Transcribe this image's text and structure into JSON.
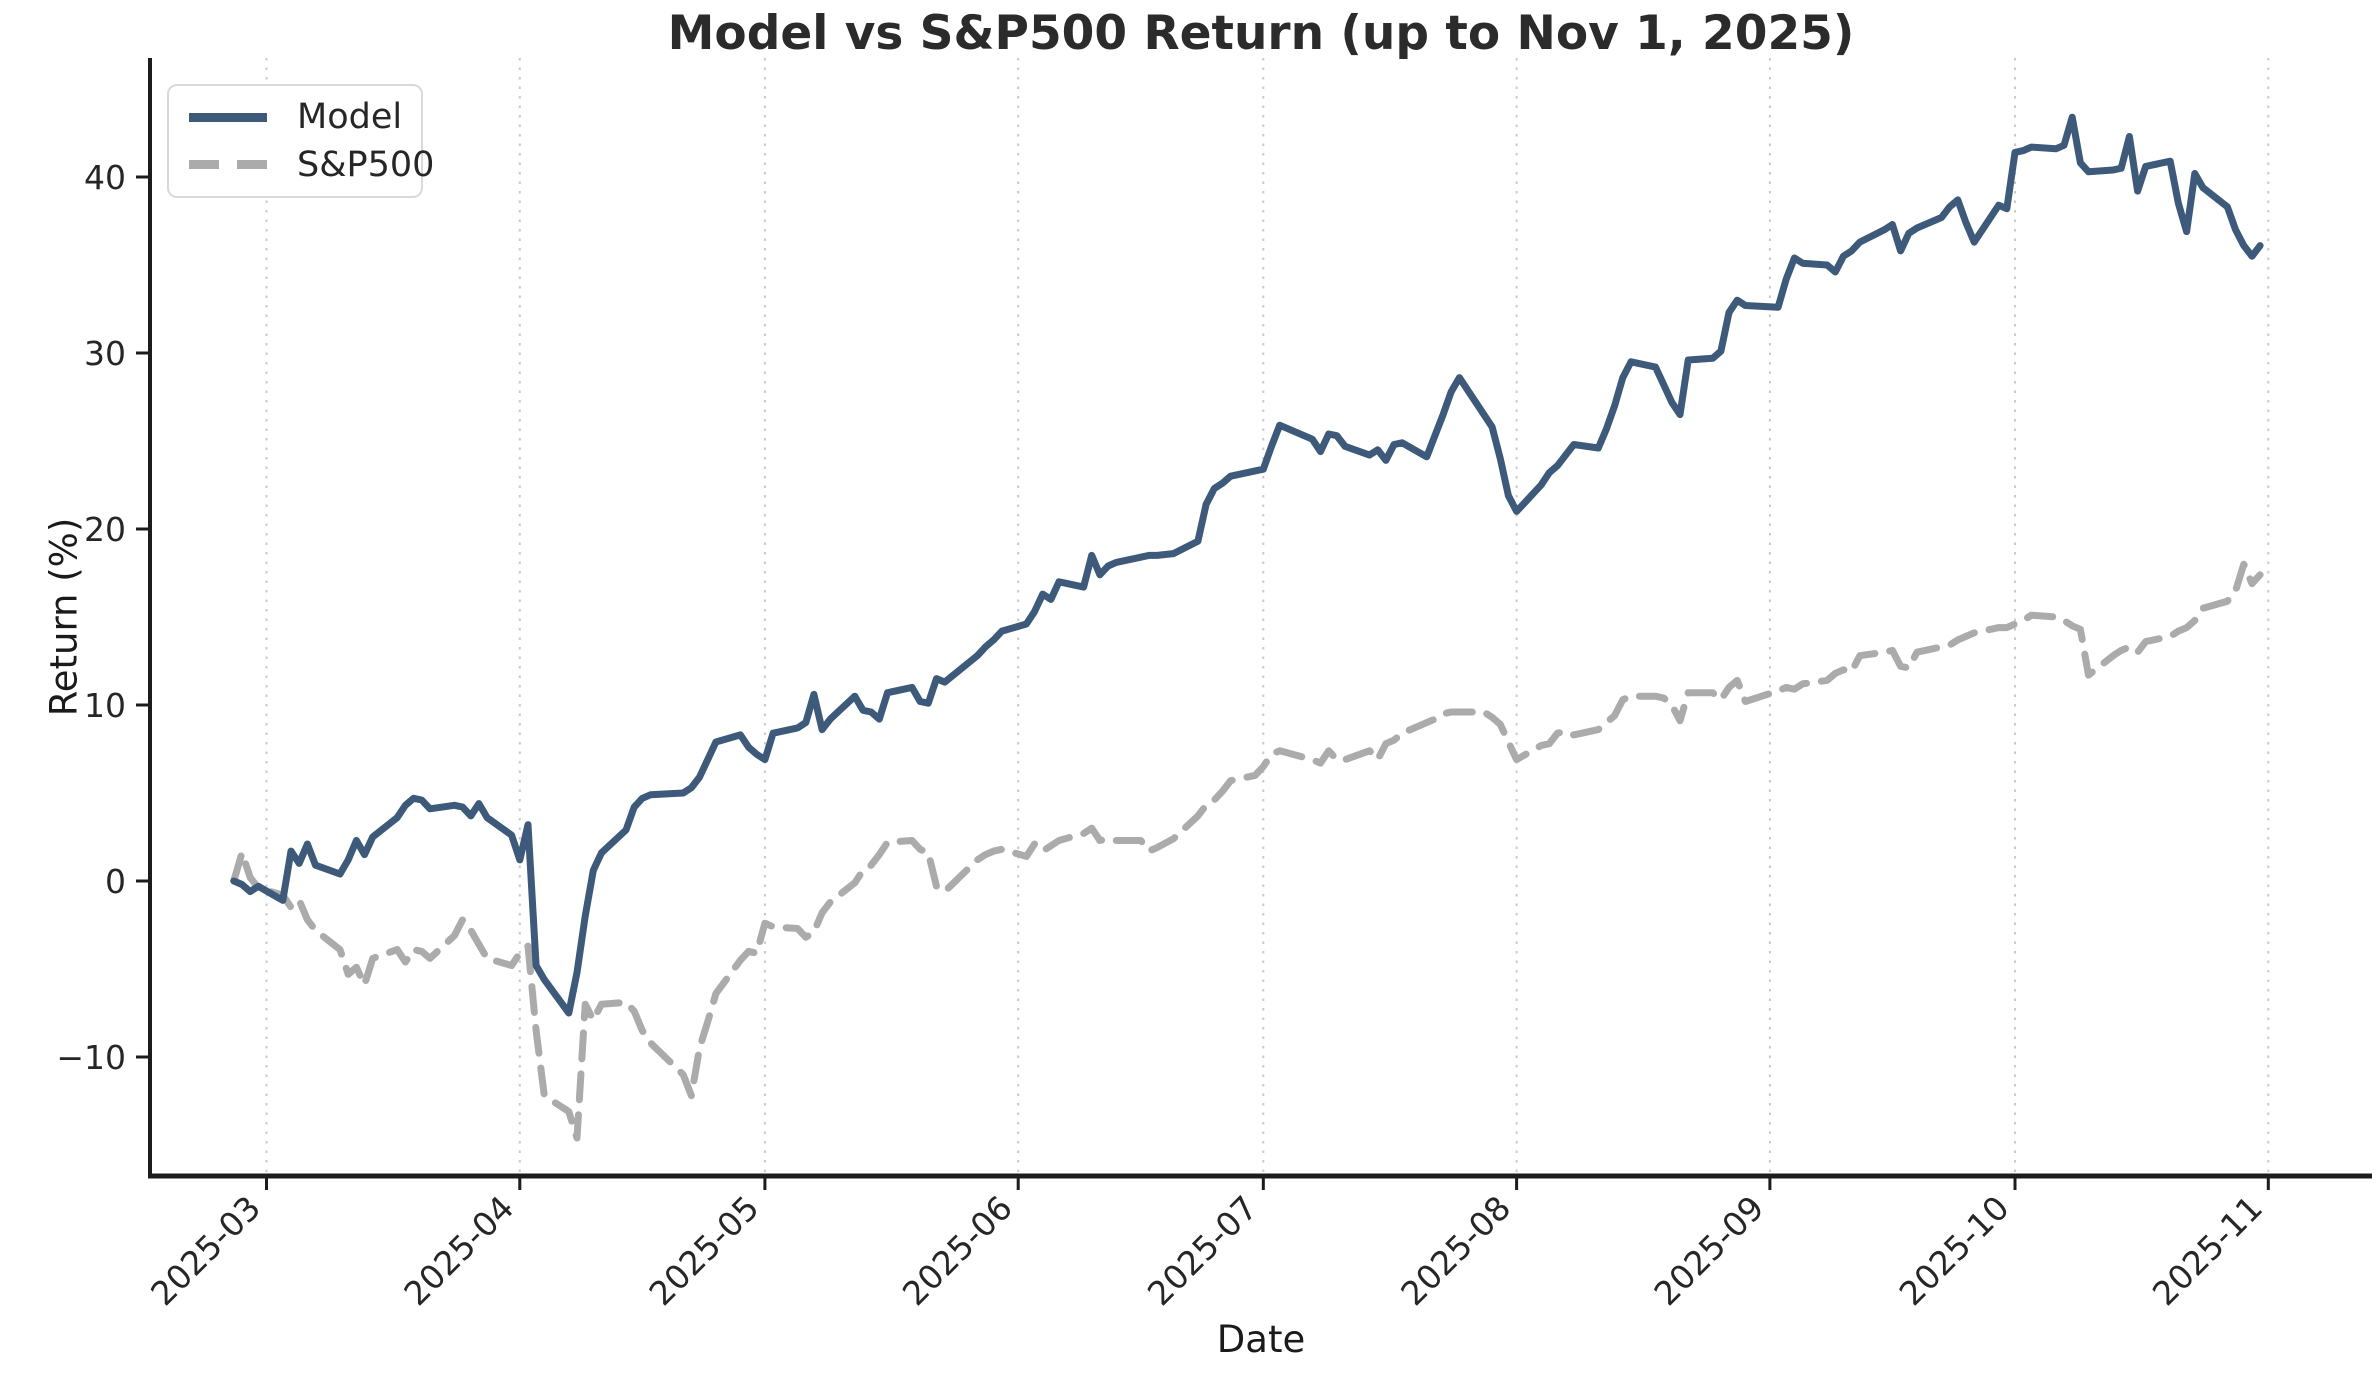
{
  "chart_data": {
    "type": "line",
    "title": "Model vs S&P500 Return (up to Nov 1, 2025)",
    "xlabel": "Date",
    "ylabel": "Return (%)",
    "legend_position": "upper left",
    "grid": "vertical dotted gridlines at month boundaries",
    "ylim": [
      -16.7,
      46.6
    ],
    "xlim": [
      "2025-02-12",
      "2025-11-13"
    ],
    "x": [
      "2025-02-25",
      "2025-02-26",
      "2025-02-27",
      "2025-02-28",
      "2025-03-03",
      "2025-03-04",
      "2025-03-05",
      "2025-03-06",
      "2025-03-07",
      "2025-03-10",
      "2025-03-11",
      "2025-03-12",
      "2025-03-13",
      "2025-03-14",
      "2025-03-17",
      "2025-03-18",
      "2025-03-19",
      "2025-03-20",
      "2025-03-21",
      "2025-03-24",
      "2025-03-25",
      "2025-03-26",
      "2025-03-27",
      "2025-03-28",
      "2025-03-31",
      "2025-04-01",
      "2025-04-02",
      "2025-04-03",
      "2025-04-04",
      "2025-04-07",
      "2025-04-08",
      "2025-04-09",
      "2025-04-10",
      "2025-04-11",
      "2025-04-14",
      "2025-04-15",
      "2025-04-16",
      "2025-04-17",
      "2025-04-21",
      "2025-04-22",
      "2025-04-23",
      "2025-04-24",
      "2025-04-25",
      "2025-04-28",
      "2025-04-29",
      "2025-04-30",
      "2025-05-01",
      "2025-05-02",
      "2025-05-05",
      "2025-05-06",
      "2025-05-07",
      "2025-05-08",
      "2025-05-09",
      "2025-05-12",
      "2025-05-13",
      "2025-05-14",
      "2025-05-15",
      "2025-05-16",
      "2025-05-19",
      "2025-05-20",
      "2025-05-21",
      "2025-05-22",
      "2025-05-23",
      "2025-05-27",
      "2025-05-28",
      "2025-05-29",
      "2025-05-30",
      "2025-06-02",
      "2025-06-03",
      "2025-06-04",
      "2025-06-05",
      "2025-06-06",
      "2025-06-09",
      "2025-06-10",
      "2025-06-11",
      "2025-06-12",
      "2025-06-13",
      "2025-06-16",
      "2025-06-17",
      "2025-06-18",
      "2025-06-20",
      "2025-06-23",
      "2025-06-24",
      "2025-06-25",
      "2025-06-26",
      "2025-06-27",
      "2025-06-30",
      "2025-07-01",
      "2025-07-02",
      "2025-07-03",
      "2025-07-07",
      "2025-07-08",
      "2025-07-09",
      "2025-07-10",
      "2025-07-11",
      "2025-07-14",
      "2025-07-15",
      "2025-07-16",
      "2025-07-17",
      "2025-07-18",
      "2025-07-21",
      "2025-07-22",
      "2025-07-23",
      "2025-07-24",
      "2025-07-25",
      "2025-07-28",
      "2025-07-29",
      "2025-07-30",
      "2025-07-31",
      "2025-08-01",
      "2025-08-04",
      "2025-08-05",
      "2025-08-06",
      "2025-08-07",
      "2025-08-08",
      "2025-08-11",
      "2025-08-12",
      "2025-08-13",
      "2025-08-14",
      "2025-08-15",
      "2025-08-18",
      "2025-08-19",
      "2025-08-20",
      "2025-08-21",
      "2025-08-22",
      "2025-08-25",
      "2025-08-26",
      "2025-08-27",
      "2025-08-28",
      "2025-08-29",
      "2025-09-02",
      "2025-09-03",
      "2025-09-04",
      "2025-09-05",
      "2025-09-08",
      "2025-09-09",
      "2025-09-10",
      "2025-09-11",
      "2025-09-12",
      "2025-09-15",
      "2025-09-16",
      "2025-09-17",
      "2025-09-18",
      "2025-09-19",
      "2025-09-22",
      "2025-09-23",
      "2025-09-24",
      "2025-09-25",
      "2025-09-26",
      "2025-09-29",
      "2025-09-30",
      "2025-10-01",
      "2025-10-02",
      "2025-10-03",
      "2025-10-06",
      "2025-10-07",
      "2025-10-08",
      "2025-10-09",
      "2025-10-10",
      "2025-10-13",
      "2025-10-14",
      "2025-10-15",
      "2025-10-16",
      "2025-10-17",
      "2025-10-20",
      "2025-10-21",
      "2025-10-22",
      "2025-10-23",
      "2025-10-24",
      "2025-10-27",
      "2025-10-28",
      "2025-10-29",
      "2025-10-30",
      "2025-10-31"
    ],
    "series": [
      {
        "name": "Model",
        "color": "#3d5a7a",
        "style": "solid",
        "values": [
          0.0,
          -0.2,
          -0.6,
          -0.3,
          -1.1,
          1.7,
          1.0,
          2.1,
          0.9,
          0.4,
          1.2,
          2.3,
          1.5,
          2.5,
          3.6,
          4.3,
          4.7,
          4.6,
          4.1,
          4.3,
          4.2,
          3.7,
          4.4,
          3.6,
          2.6,
          1.2,
          3.2,
          -4.8,
          -5.6,
          -7.5,
          -5.2,
          -2.0,
          0.6,
          1.6,
          2.9,
          4.2,
          4.7,
          4.9,
          5.0,
          5.3,
          5.9,
          6.9,
          7.9,
          8.3,
          7.6,
          7.2,
          6.9,
          8.4,
          8.7,
          9.0,
          10.6,
          8.6,
          9.2,
          10.5,
          9.7,
          9.6,
          9.2,
          10.7,
          11.0,
          10.2,
          10.1,
          11.5,
          11.3,
          12.8,
          13.3,
          13.7,
          14.2,
          14.6,
          15.3,
          16.3,
          16.0,
          17.0,
          16.7,
          18.5,
          17.4,
          17.9,
          18.1,
          18.4,
          18.5,
          18.5,
          18.6,
          19.3,
          21.4,
          22.3,
          22.6,
          23.0,
          23.3,
          23.4,
          24.7,
          25.9,
          25.1,
          24.4,
          25.4,
          25.3,
          24.7,
          24.2,
          24.5,
          23.9,
          24.8,
          24.9,
          24.1,
          25.3,
          26.5,
          27.8,
          28.6,
          26.5,
          25.8,
          24.0,
          21.9,
          21.0,
          22.5,
          23.2,
          23.6,
          24.2,
          24.8,
          24.6,
          25.7,
          27.0,
          28.6,
          29.5,
          29.2,
          28.2,
          27.2,
          26.5,
          29.6,
          29.7,
          30.1,
          32.3,
          33.0,
          32.7,
          32.6,
          34.2,
          35.4,
          35.1,
          35.0,
          34.6,
          35.5,
          35.8,
          36.3,
          37.0,
          37.3,
          35.8,
          36.8,
          37.1,
          37.7,
          38.3,
          38.7,
          37.4,
          36.3,
          38.4,
          38.2,
          41.4,
          41.5,
          41.7,
          41.6,
          41.8,
          43.4,
          40.8,
          40.3,
          40.4,
          40.5,
          42.3,
          39.2,
          40.6,
          40.9,
          38.5,
          36.9,
          40.2,
          39.4,
          38.3,
          37.0,
          36.1,
          35.5,
          36.1
        ]
      },
      {
        "name": "S&P500",
        "color": "#ababab",
        "style": "dashed",
        "values": [
          0.0,
          1.6,
          0.2,
          -0.4,
          -0.8,
          -1.5,
          -1.1,
          -2.2,
          -2.8,
          -3.9,
          -5.3,
          -4.9,
          -5.9,
          -4.4,
          -3.9,
          -4.6,
          -3.9,
          -4.0,
          -4.4,
          -3.1,
          -2.2,
          -2.8,
          -3.6,
          -4.4,
          -4.8,
          -4.1,
          -3.7,
          -8.5,
          -12.2,
          -13.1,
          -14.6,
          -7.0,
          -7.9,
          -7.0,
          -6.9,
          -7.4,
          -8.5,
          -9.2,
          -11.0,
          -12.2,
          -9.5,
          -8.0,
          -6.4,
          -4.5,
          -4.0,
          -4.1,
          -2.4,
          -2.6,
          -2.7,
          -3.2,
          -2.9,
          -1.8,
          -1.2,
          -0.1,
          0.6,
          0.9,
          1.5,
          2.2,
          2.3,
          1.8,
          1.6,
          -0.3,
          -0.6,
          1.2,
          1.5,
          1.7,
          1.8,
          1.4,
          2.1,
          1.7,
          2.0,
          2.3,
          2.7,
          3.0,
          2.3,
          2.4,
          2.3,
          2.3,
          1.7,
          1.9,
          2.4,
          3.7,
          4.3,
          4.6,
          5.1,
          5.7,
          6.0,
          6.5,
          7.2,
          7.4,
          6.9,
          6.7,
          7.4,
          6.9,
          6.9,
          7.4,
          6.9,
          7.8,
          8.0,
          8.4,
          9.0,
          9.2,
          9.5,
          9.6,
          9.6,
          9.6,
          9.3,
          8.9,
          7.9,
          6.9,
          7.7,
          7.8,
          8.4,
          8.5,
          8.3,
          8.6,
          9.0,
          9.4,
          10.3,
          10.5,
          10.5,
          10.4,
          10.0,
          9.1,
          10.7,
          10.7,
          10.3,
          11.0,
          11.4,
          10.2,
          10.8,
          11.0,
          10.9,
          11.2,
          11.4,
          11.8,
          12.0,
          11.9,
          12.8,
          13.0,
          13.1,
          12.2,
          12.1,
          13.0,
          13.3,
          13.4,
          13.7,
          13.9,
          14.1,
          14.4,
          14.4,
          14.6,
          14.8,
          15.1,
          15.0,
          14.8,
          14.5,
          14.3,
          11.7,
          12.8,
          13.1,
          13.3,
          13.0,
          13.6,
          13.9,
          14.2,
          14.4,
          14.8,
          15.5,
          15.9,
          16.5,
          18.0,
          16.9,
          17.4
        ]
      }
    ]
  },
  "axes": {
    "yticks": [
      40,
      30,
      20,
      10,
      0,
      -10
    ],
    "ytick_labels": [
      "40",
      "30",
      "20",
      "10",
      "0",
      "−10"
    ],
    "xtick_labels": [
      "2025-03",
      "2025-04",
      "2025-05",
      "2025-06",
      "2025-07",
      "2025-08",
      "2025-09",
      "2025-10",
      "2025-11"
    ],
    "grid_color": "#c9c9c9",
    "spine_color": "#1c1c1c",
    "tick_text_color": "#262626"
  }
}
